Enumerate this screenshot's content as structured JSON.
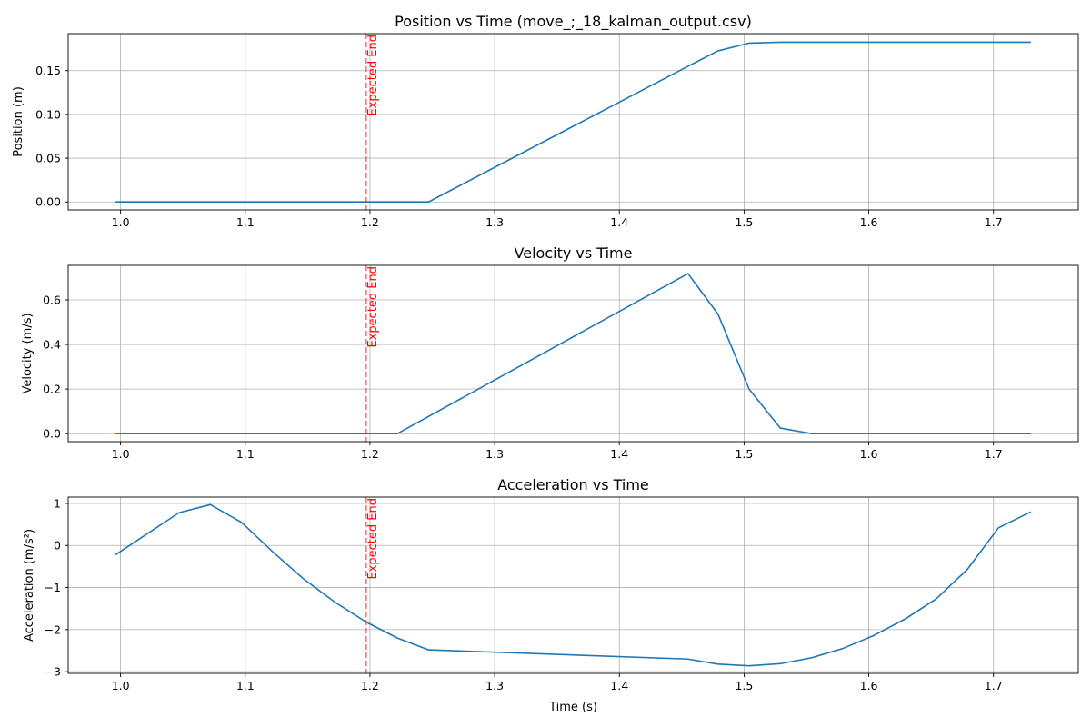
{
  "chart_data": [
    {
      "type": "line",
      "title": "Position vs Time (move_;_18_kalman_output.csv)",
      "xlabel": "",
      "ylabel": "Position (m)",
      "xlim": [
        0.958,
        1.768
      ],
      "ylim": [
        -0.0091,
        0.1923
      ],
      "xticks": [
        1.0,
        1.1,
        1.2,
        1.3,
        1.4,
        1.5,
        1.6,
        1.7
      ],
      "xtick_labels": [
        "1.0",
        "1.1",
        "1.2",
        "1.3",
        "1.4",
        "1.5",
        "1.6",
        "1.7"
      ],
      "yticks": [
        0.0,
        0.05,
        0.1,
        0.15
      ],
      "ytick_labels": [
        "0.00",
        "0.05",
        "0.10",
        "0.15"
      ],
      "grid": true,
      "series": [
        {
          "color": "#1f77b4",
          "x": [
            0.996,
            1.247,
            1.455,
            1.479,
            1.504,
            1.529,
            1.554,
            1.73
          ],
          "y": [
            0.0,
            0.0,
            0.155,
            0.1725,
            0.1815,
            0.1825,
            0.1825,
            0.1825
          ]
        }
      ],
      "vline": {
        "x": 1.197,
        "color": "#ff0000",
        "label": "Expected End"
      }
    },
    {
      "type": "line",
      "title": "Velocity vs Time",
      "xlabel": "",
      "ylabel": "Velocity (m/s)",
      "xlim": [
        0.958,
        1.768
      ],
      "ylim": [
        -0.036,
        0.755
      ],
      "xticks": [
        1.0,
        1.1,
        1.2,
        1.3,
        1.4,
        1.5,
        1.6,
        1.7
      ],
      "xtick_labels": [
        "1.0",
        "1.1",
        "1.2",
        "1.3",
        "1.4",
        "1.5",
        "1.6",
        "1.7"
      ],
      "yticks": [
        0.0,
        0.2,
        0.4,
        0.6
      ],
      "ytick_labels": [
        "0.0",
        "0.2",
        "0.4",
        "0.6"
      ],
      "grid": true,
      "series": [
        {
          "color": "#1f77b4",
          "x": [
            0.996,
            1.222,
            1.455,
            1.479,
            1.504,
            1.529,
            1.554,
            1.73
          ],
          "y": [
            0.0,
            0.0,
            0.718,
            0.537,
            0.2,
            0.025,
            0.0,
            0.0
          ]
        }
      ],
      "vline": {
        "x": 1.197,
        "color": "#ff0000",
        "label": "Expected End"
      }
    },
    {
      "type": "line",
      "title": "Acceleration vs Time",
      "xlabel": "Time (s)",
      "ylabel": "Acceleration (m/s²)",
      "xlim": [
        0.958,
        1.768
      ],
      "ylim": [
        -3.04,
        1.15
      ],
      "xticks": [
        1.0,
        1.1,
        1.2,
        1.3,
        1.4,
        1.5,
        1.6,
        1.7
      ],
      "xtick_labels": [
        "1.0",
        "1.1",
        "1.2",
        "1.3",
        "1.4",
        "1.5",
        "1.6",
        "1.7"
      ],
      "yticks": [
        -3,
        -2,
        -1,
        0,
        1
      ],
      "ytick_labels": [
        "−3",
        "−2",
        "−1",
        "0",
        "1"
      ],
      "grid": true,
      "series": [
        {
          "color": "#1f77b4",
          "x": [
            0.996,
            1.047,
            1.072,
            1.097,
            1.122,
            1.147,
            1.172,
            1.197,
            1.222,
            1.247,
            1.455,
            1.479,
            1.504,
            1.529,
            1.554,
            1.579,
            1.604,
            1.629,
            1.654,
            1.679,
            1.704,
            1.73
          ],
          "y": [
            -0.22,
            0.78,
            0.97,
            0.55,
            -0.15,
            -0.8,
            -1.35,
            -1.82,
            -2.2,
            -2.48,
            -2.7,
            -2.82,
            -2.86,
            -2.81,
            -2.67,
            -2.45,
            -2.14,
            -1.75,
            -1.27,
            -0.57,
            0.42,
            0.8
          ]
        }
      ],
      "vline": {
        "x": 1.197,
        "color": "#ff0000",
        "label": "Expected End"
      }
    }
  ]
}
